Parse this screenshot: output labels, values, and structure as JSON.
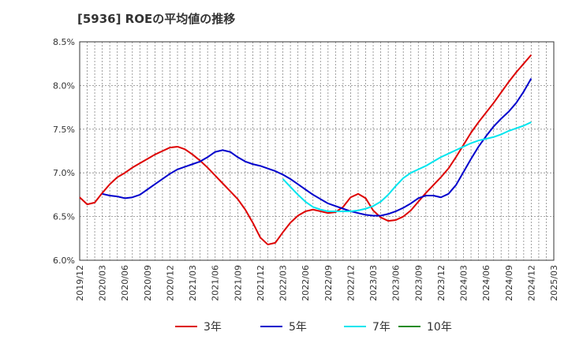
{
  "chart_data": {
    "type": "line",
    "title": "[5936]  ROEの平均値の推移",
    "xlabel": "",
    "ylabel": "",
    "ylim": [
      6.0,
      8.5
    ],
    "y_ticks": [
      6.0,
      6.5,
      7.0,
      7.5,
      8.0,
      8.5
    ],
    "y_tick_labels": [
      "6.0%",
      "6.5%",
      "7.0%",
      "7.5%",
      "8.0%",
      "8.5%"
    ],
    "x_tick_labels": [
      "2019/12",
      "2020/03",
      "2020/06",
      "2020/09",
      "2020/12",
      "2021/03",
      "2021/06",
      "2021/09",
      "2021/12",
      "2022/03",
      "2022/06",
      "2022/09",
      "2022/12",
      "2023/03",
      "2023/06",
      "2023/09",
      "2023/12",
      "2024/03",
      "2024/06",
      "2024/09",
      "2024/12",
      "2025/03"
    ],
    "grid": true,
    "legend_position": "bottom",
    "series": [
      {
        "name": "3年",
        "color": "#dd0000",
        "points": [
          [
            "2019/12",
            6.72
          ],
          [
            "2020/01",
            6.64
          ],
          [
            "2020/02",
            6.66
          ],
          [
            "2020/03",
            6.77
          ],
          [
            "2020/04",
            6.87
          ],
          [
            "2020/05",
            6.95
          ],
          [
            "2020/06",
            7.0
          ],
          [
            "2020/07",
            7.06
          ],
          [
            "2020/08",
            7.11
          ],
          [
            "2020/09",
            7.16
          ],
          [
            "2020/10",
            7.21
          ],
          [
            "2020/11",
            7.25
          ],
          [
            "2020/12",
            7.29
          ],
          [
            "2021/01",
            7.3
          ],
          [
            "2021/02",
            7.27
          ],
          [
            "2021/03",
            7.21
          ],
          [
            "2021/04",
            7.14
          ],
          [
            "2021/05",
            7.06
          ],
          [
            "2021/06",
            6.97
          ],
          [
            "2021/07",
            6.88
          ],
          [
            "2021/08",
            6.79
          ],
          [
            "2021/09",
            6.7
          ],
          [
            "2021/10",
            6.58
          ],
          [
            "2021/11",
            6.43
          ],
          [
            "2021/12",
            6.26
          ],
          [
            "2022/01",
            6.18
          ],
          [
            "2022/02",
            6.2
          ],
          [
            "2022/03",
            6.32
          ],
          [
            "2022/04",
            6.43
          ],
          [
            "2022/05",
            6.51
          ],
          [
            "2022/06",
            6.56
          ],
          [
            "2022/07",
            6.58
          ],
          [
            "2022/08",
            6.56
          ],
          [
            "2022/09",
            6.54
          ],
          [
            "2022/10",
            6.55
          ],
          [
            "2022/11",
            6.61
          ],
          [
            "2022/12",
            6.72
          ],
          [
            "2023/01",
            6.76
          ],
          [
            "2023/02",
            6.71
          ],
          [
            "2023/03",
            6.57
          ],
          [
            "2023/04",
            6.49
          ],
          [
            "2023/05",
            6.45
          ],
          [
            "2023/06",
            6.46
          ],
          [
            "2023/07",
            6.5
          ],
          [
            "2023/08",
            6.57
          ],
          [
            "2023/09",
            6.67
          ],
          [
            "2023/10",
            6.77
          ],
          [
            "2023/11",
            6.86
          ],
          [
            "2023/12",
            6.95
          ],
          [
            "2024/01",
            7.05
          ],
          [
            "2024/02",
            7.18
          ],
          [
            "2024/03",
            7.32
          ],
          [
            "2024/04",
            7.46
          ],
          [
            "2024/05",
            7.58
          ],
          [
            "2024/06",
            7.69
          ],
          [
            "2024/07",
            7.8
          ],
          [
            "2024/08",
            7.92
          ],
          [
            "2024/09",
            8.04
          ],
          [
            "2024/10",
            8.15
          ],
          [
            "2024/11",
            8.25
          ],
          [
            "2024/12",
            8.35
          ]
        ]
      },
      {
        "name": "5年",
        "color": "#0000cc",
        "points": [
          [
            "2020/03",
            6.76
          ],
          [
            "2020/04",
            6.74
          ],
          [
            "2020/05",
            6.73
          ],
          [
            "2020/06",
            6.71
          ],
          [
            "2020/07",
            6.72
          ],
          [
            "2020/08",
            6.75
          ],
          [
            "2020/09",
            6.81
          ],
          [
            "2020/10",
            6.87
          ],
          [
            "2020/11",
            6.93
          ],
          [
            "2020/12",
            6.99
          ],
          [
            "2021/01",
            7.04
          ],
          [
            "2021/02",
            7.07
          ],
          [
            "2021/03",
            7.1
          ],
          [
            "2021/04",
            7.13
          ],
          [
            "2021/05",
            7.18
          ],
          [
            "2021/06",
            7.24
          ],
          [
            "2021/07",
            7.26
          ],
          [
            "2021/08",
            7.24
          ],
          [
            "2021/09",
            7.18
          ],
          [
            "2021/10",
            7.13
          ],
          [
            "2021/11",
            7.1
          ],
          [
            "2021/12",
            7.08
          ],
          [
            "2022/01",
            7.05
          ],
          [
            "2022/02",
            7.02
          ],
          [
            "2022/03",
            6.98
          ],
          [
            "2022/04",
            6.93
          ],
          [
            "2022/05",
            6.87
          ],
          [
            "2022/06",
            6.81
          ],
          [
            "2022/07",
            6.75
          ],
          [
            "2022/08",
            6.7
          ],
          [
            "2022/09",
            6.65
          ],
          [
            "2022/10",
            6.62
          ],
          [
            "2022/11",
            6.59
          ],
          [
            "2022/12",
            6.56
          ],
          [
            "2023/01",
            6.54
          ],
          [
            "2023/02",
            6.52
          ],
          [
            "2023/03",
            6.51
          ],
          [
            "2023/04",
            6.51
          ],
          [
            "2023/05",
            6.53
          ],
          [
            "2023/06",
            6.56
          ],
          [
            "2023/07",
            6.6
          ],
          [
            "2023/08",
            6.65
          ],
          [
            "2023/09",
            6.71
          ],
          [
            "2023/10",
            6.74
          ],
          [
            "2023/11",
            6.74
          ],
          [
            "2023/12",
            6.72
          ],
          [
            "2024/01",
            6.76
          ],
          [
            "2024/02",
            6.86
          ],
          [
            "2024/03",
            7.01
          ],
          [
            "2024/04",
            7.16
          ],
          [
            "2024/05",
            7.3
          ],
          [
            "2024/06",
            7.42
          ],
          [
            "2024/07",
            7.53
          ],
          [
            "2024/08",
            7.62
          ],
          [
            "2024/09",
            7.7
          ],
          [
            "2024/10",
            7.8
          ],
          [
            "2024/11",
            7.93
          ],
          [
            "2024/12",
            8.08
          ]
        ]
      },
      {
        "name": "7年",
        "color": "#00e5ee",
        "points": [
          [
            "2022/03",
            6.93
          ],
          [
            "2022/04",
            6.84
          ],
          [
            "2022/05",
            6.75
          ],
          [
            "2022/06",
            6.67
          ],
          [
            "2022/07",
            6.61
          ],
          [
            "2022/08",
            6.58
          ],
          [
            "2022/09",
            6.56
          ],
          [
            "2022/10",
            6.56
          ],
          [
            "2022/11",
            6.56
          ],
          [
            "2022/12",
            6.56
          ],
          [
            "2023/01",
            6.57
          ],
          [
            "2023/02",
            6.59
          ],
          [
            "2023/03",
            6.62
          ],
          [
            "2023/04",
            6.67
          ],
          [
            "2023/05",
            6.75
          ],
          [
            "2023/06",
            6.85
          ],
          [
            "2023/07",
            6.94
          ],
          [
            "2023/08",
            7.0
          ],
          [
            "2023/09",
            7.04
          ],
          [
            "2023/10",
            7.08
          ],
          [
            "2023/11",
            7.13
          ],
          [
            "2023/12",
            7.18
          ],
          [
            "2024/01",
            7.22
          ],
          [
            "2024/02",
            7.26
          ],
          [
            "2024/03",
            7.3
          ],
          [
            "2024/04",
            7.34
          ],
          [
            "2024/05",
            7.37
          ],
          [
            "2024/06",
            7.39
          ],
          [
            "2024/07",
            7.41
          ],
          [
            "2024/08",
            7.44
          ],
          [
            "2024/09",
            7.48
          ],
          [
            "2024/10",
            7.51
          ],
          [
            "2024/11",
            7.54
          ],
          [
            "2024/12",
            7.58
          ]
        ]
      },
      {
        "name": "10年",
        "color": "#228b22",
        "points": []
      }
    ]
  }
}
